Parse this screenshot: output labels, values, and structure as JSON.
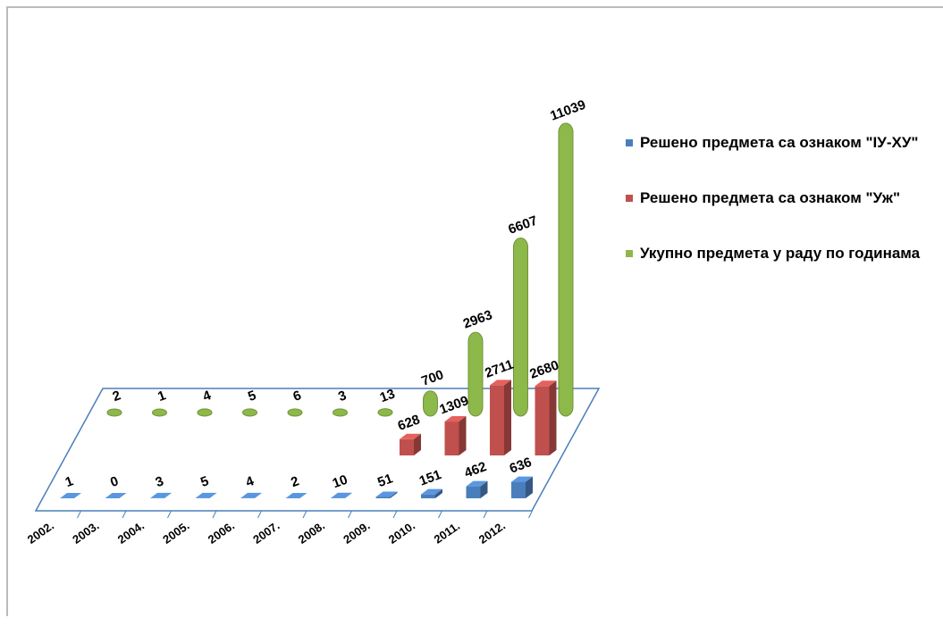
{
  "chart_data": {
    "type": "bar3d",
    "categories": [
      "2002.",
      "2003.",
      "2004.",
      "2005.",
      "2006.",
      "2007.",
      "2008.",
      "2009.",
      "2010.",
      "2011.",
      "2012."
    ],
    "series": [
      {
        "name": "Решено предмета са ознаком \"ІУ-ХУ\"",
        "color": "#4a7ebb",
        "values": [
          1,
          0,
          3,
          5,
          4,
          2,
          10,
          51,
          151,
          462,
          636
        ]
      },
      {
        "name": "Решено предмета са ознаком \"Уж\"",
        "color": "#c0504d",
        "values": [
          null,
          null,
          null,
          null,
          null,
          null,
          null,
          628,
          1309,
          2711,
          2680
        ]
      },
      {
        "name": "Укупно предмета у раду по годинама",
        "color": "#8db84a",
        "values": [
          2,
          1,
          4,
          5,
          6,
          3,
          13,
          700,
          2963,
          6607,
          11039
        ]
      }
    ],
    "legend": "right"
  }
}
